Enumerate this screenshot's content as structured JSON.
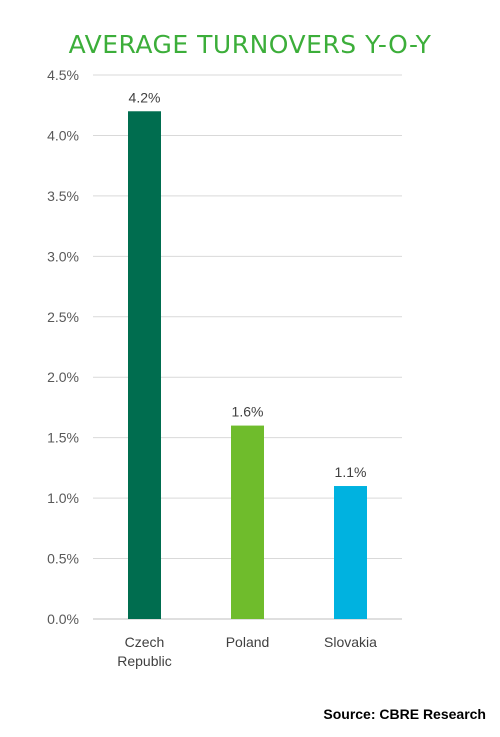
{
  "chart_data": {
    "type": "bar",
    "title": "AVERAGE TURNOVERS Y-O-Y",
    "categories": [
      [
        "Czech",
        "Republic"
      ],
      [
        "Poland"
      ],
      [
        "Slovakia"
      ]
    ],
    "values": [
      4.2,
      1.6,
      1.1
    ],
    "value_labels": [
      "4.2%",
      "1.6%",
      "1.1%"
    ],
    "colors": [
      "#006d4f",
      "#6fbc2c",
      "#00b2e0"
    ],
    "ylim": [
      0,
      4.5
    ],
    "yticks": [
      0,
      0.5,
      1.0,
      1.5,
      2.0,
      2.5,
      3.0,
      3.5,
      4.0,
      4.5
    ],
    "ytick_labels": [
      "0.0%",
      "0.5%",
      "1.0%",
      "1.5%",
      "2.0%",
      "2.5%",
      "3.0%",
      "3.5%",
      "4.0%",
      "4.5%"
    ],
    "grid": true,
    "xlabel": "",
    "ylabel": ""
  },
  "source": "Source: CBRE Research"
}
